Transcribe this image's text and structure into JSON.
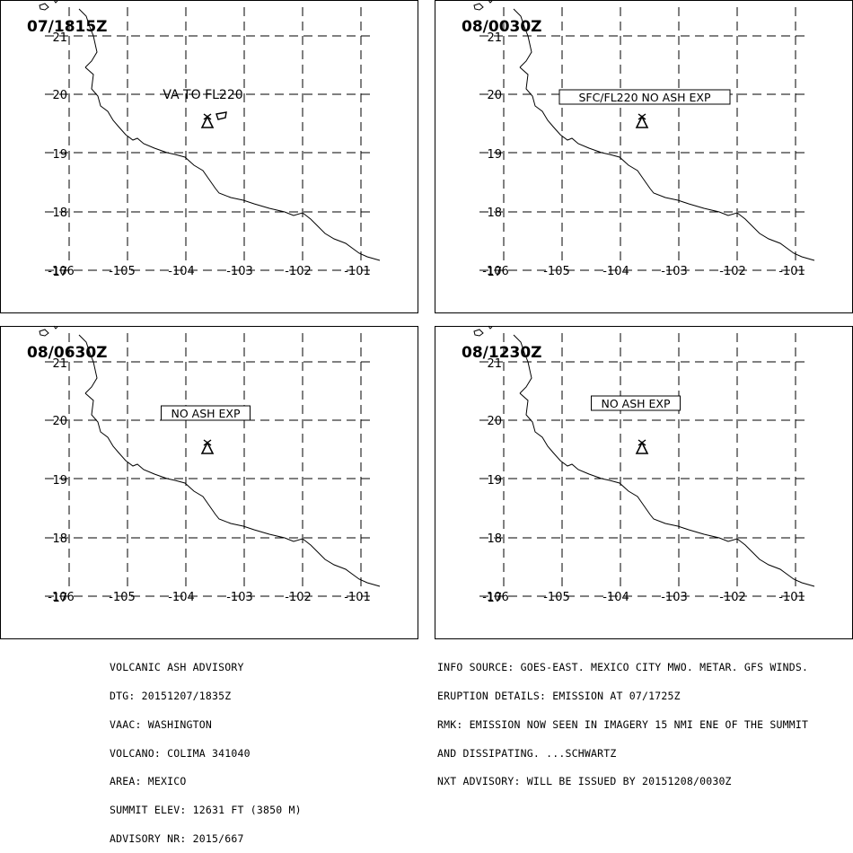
{
  "panels": [
    {
      "time": "07/1815Z",
      "annotation": "VA TO FL220",
      "annotation_boxed": false,
      "ash_polygon": true
    },
    {
      "time": "08/0030Z",
      "annotation": "SFC/FL220 NO ASH EXP",
      "annotation_boxed": true,
      "ash_polygon": false
    },
    {
      "time": "08/0630Z",
      "annotation": "NO ASH EXP",
      "annotation_boxed": true,
      "ash_polygon": false
    },
    {
      "time": "08/1230Z",
      "annotation": "NO ASH EXP",
      "annotation_boxed": true,
      "ash_polygon": false
    }
  ],
  "lat_labels": [
    "21",
    "20",
    "19",
    "18",
    "17"
  ],
  "lon_labels": [
    "-106",
    "-105",
    "-104",
    "-103",
    "-102",
    "-101"
  ],
  "volcano_icon": "volcano-triangle-icon",
  "advisory_left": {
    "title": "VOLCANIC ASH ADVISORY",
    "dtg": "DTG: 20151207/1835Z",
    "vaac": "VAAC: WASHINGTON",
    "volcano": "VOLCANO: COLIMA 341040",
    "area": "AREA: MEXICO",
    "summit": "SUMMIT ELEV: 12631 FT (3850 M)",
    "advisory_nr": "ADVISORY NR: 2015/667"
  },
  "advisory_right": {
    "info_source": "INFO SOURCE: GOES-EAST. MEXICO CITY MWO. METAR. GFS WINDS.",
    "eruption": "ERUPTION DETAILS: EMISSION AT 07/1725Z",
    "rmk1": "RMK: EMISSION NOW SEEN IN IMAGERY 15 NMI ENE OF THE SUMMIT",
    "rmk2": "AND DISSIPATING. ...SCHWARTZ",
    "nxt": "NXT ADVISORY: WILL BE ISSUED BY 20151208/0030Z"
  }
}
